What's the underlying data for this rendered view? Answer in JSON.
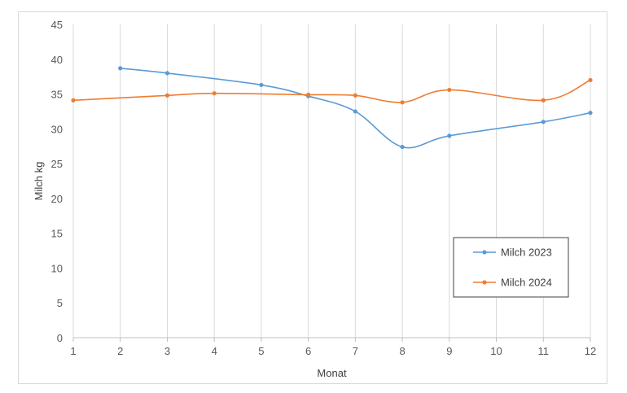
{
  "chart_data": {
    "type": "line",
    "title": "",
    "xlabel": "Monat",
    "ylabel": "Milch kg",
    "x": [
      1,
      2,
      3,
      4,
      5,
      6,
      7,
      8,
      9,
      10,
      11,
      12
    ],
    "xlim": [
      1,
      12
    ],
    "ylim": [
      0,
      45
    ],
    "yticks": [
      0,
      5,
      10,
      15,
      20,
      25,
      30,
      35,
      40,
      45
    ],
    "grid": "vertical",
    "legend_position": "bottom-right",
    "series": [
      {
        "name": "Milch 2023",
        "color": "#5b9bd5",
        "points": [
          [
            2,
            38.7
          ],
          [
            3,
            38.0
          ],
          [
            5,
            36.3
          ],
          [
            6,
            34.7
          ],
          [
            7,
            32.5
          ],
          [
            8,
            27.4
          ],
          [
            9,
            29.0
          ],
          [
            11,
            31.0
          ],
          [
            12,
            32.3
          ]
        ]
      },
      {
        "name": "Milch 2024",
        "color": "#ed7d31",
        "points": [
          [
            1,
            34.1
          ],
          [
            3,
            34.8
          ],
          [
            4,
            35.1
          ],
          [
            6,
            34.9
          ],
          [
            7,
            34.8
          ],
          [
            8,
            33.8
          ],
          [
            9,
            35.6
          ],
          [
            11,
            34.1
          ],
          [
            12,
            37.0
          ]
        ]
      }
    ]
  }
}
